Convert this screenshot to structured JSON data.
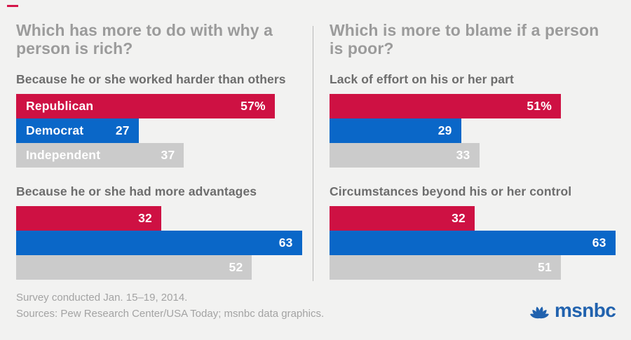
{
  "page": {
    "background": "#f2f2f1",
    "accent_dash_color": "#d5164a"
  },
  "colors": {
    "republican_red": "#ce1143",
    "democrat_blue": "#0a67c8",
    "independent_gray": "#cbcbcb",
    "title_gray": "#9b9b9b",
    "subtitle_gray": "#6d6d6d",
    "footer_gray": "#a3a3a3",
    "logo_blue": "#2162ae"
  },
  "panels": [
    {
      "title_lines": [
        "Which has more to do with why a",
        "person is rich?"
      ],
      "charts": [
        {
          "subtitle": "Because he or she worked harder than others",
          "bars": [
            {
              "party": "Republican",
              "label": "Republican",
              "value": 57,
              "display_value": "57%",
              "color": "#ce1143"
            },
            {
              "party": "Democrat",
              "label": "Democrat",
              "value": 27,
              "display_value": "27",
              "color": "#0a67c8"
            },
            {
              "party": "Independent",
              "label": "Independent",
              "value": 37,
              "display_value": "37",
              "color": "#cbcbcb"
            }
          ]
        },
        {
          "subtitle": "Because he or she had more advantages",
          "bars": [
            {
              "party": "Republican",
              "label": "",
              "value": 32,
              "display_value": "32",
              "color": "#ce1143"
            },
            {
              "party": "Democrat",
              "label": "",
              "value": 63,
              "display_value": "63",
              "color": "#0a67c8"
            },
            {
              "party": "Independent",
              "label": "",
              "value": 52,
              "display_value": "52",
              "color": "#cbcbcb"
            }
          ]
        }
      ]
    },
    {
      "title_lines": [
        "Which is more to blame if a person",
        "is poor?"
      ],
      "charts": [
        {
          "subtitle": "Lack of effort on his or her part",
          "bars": [
            {
              "party": "Republican",
              "label": "",
              "value": 51,
              "display_value": "51%",
              "color": "#ce1143"
            },
            {
              "party": "Democrat",
              "label": "",
              "value": 29,
              "display_value": "29",
              "color": "#0a67c8"
            },
            {
              "party": "Independent",
              "label": "",
              "value": 33,
              "display_value": "33",
              "color": "#cbcbcb"
            }
          ]
        },
        {
          "subtitle": "Circumstances beyond his or her control",
          "bars": [
            {
              "party": "Republican",
              "label": "",
              "value": 32,
              "display_value": "32",
              "color": "#ce1143"
            },
            {
              "party": "Democrat",
              "label": "",
              "value": 63,
              "display_value": "63",
              "color": "#0a67c8"
            },
            {
              "party": "Independent",
              "label": "",
              "value": 51,
              "display_value": "51",
              "color": "#cbcbcb"
            }
          ]
        }
      ]
    }
  ],
  "footer": {
    "line1": "Survey conducted Jan. 15–19, 2014.",
    "line2": "Sources: Pew Research Center/USA Today; msnbc data graphics."
  },
  "logo": {
    "icon": "nbc-peacock-icon",
    "text": "msnbc",
    "color": "#2162ae"
  },
  "chart_data": [
    {
      "type": "bar",
      "title": "Which has more to do with why a person is rich?",
      "subtitle": "Because he or she worked harder than others",
      "categories": [
        "Republican",
        "Democrat",
        "Independent"
      ],
      "values": [
        57,
        27,
        37
      ],
      "unit": "%",
      "xlabel": "",
      "ylabel": "",
      "xlim": [
        0,
        63
      ],
      "grid": false,
      "legend": "labels inside bars",
      "orientation": "horizontal"
    },
    {
      "type": "bar",
      "title": "Which has more to do with why a person is rich?",
      "subtitle": "Because he or she had more advantages",
      "categories": [
        "Republican",
        "Democrat",
        "Independent"
      ],
      "values": [
        32,
        63,
        52
      ],
      "unit": "%",
      "xlabel": "",
      "ylabel": "",
      "xlim": [
        0,
        63
      ],
      "grid": false,
      "legend": "none",
      "orientation": "horizontal"
    },
    {
      "type": "bar",
      "title": "Which is more to blame if a person is poor?",
      "subtitle": "Lack of effort on his or her part",
      "categories": [
        "Republican",
        "Democrat",
        "Independent"
      ],
      "values": [
        51,
        29,
        33
      ],
      "unit": "%",
      "xlabel": "",
      "ylabel": "",
      "xlim": [
        0,
        63
      ],
      "grid": false,
      "legend": "none",
      "orientation": "horizontal"
    },
    {
      "type": "bar",
      "title": "Which is more to blame if a person is poor?",
      "subtitle": "Circumstances beyond his or her control",
      "categories": [
        "Republican",
        "Democrat",
        "Independent"
      ],
      "values": [
        32,
        63,
        51
      ],
      "unit": "%",
      "xlabel": "",
      "ylabel": "",
      "xlim": [
        0,
        63
      ],
      "grid": false,
      "legend": "none",
      "orientation": "horizontal"
    }
  ]
}
